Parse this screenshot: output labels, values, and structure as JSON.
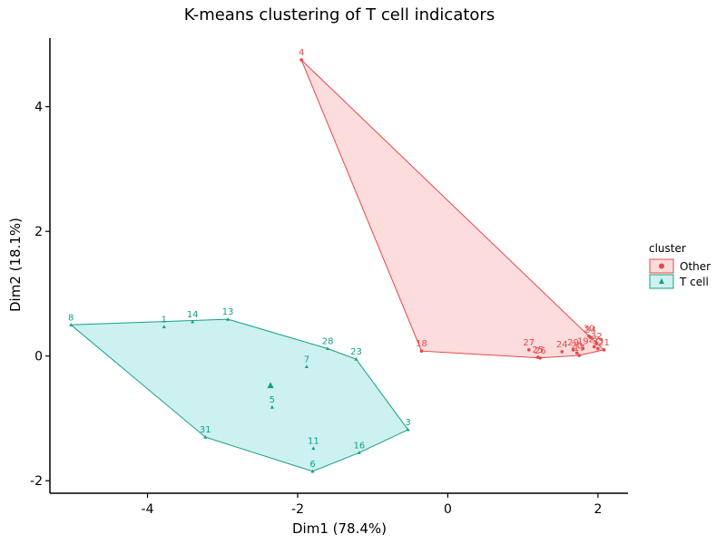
{
  "chart_data": {
    "type": "scatter",
    "title": "K-means clustering of T cell indicators",
    "xlabel": "Dim1 (78.4%)",
    "ylabel": "Dim2 (18.1%)",
    "xlim": [
      -5.3,
      2.4
    ],
    "ylim": [
      -2.2,
      5.1
    ],
    "x_ticks": [
      -4,
      -2,
      0,
      2
    ],
    "y_ticks": [
      -2,
      0,
      2,
      4
    ],
    "grid": false,
    "legend_placement": "right",
    "legend": {
      "title": "cluster",
      "entries": [
        {
          "name": "Other",
          "shape": "circle",
          "color": "#e8474a",
          "fill": "#fcdcdc"
        },
        {
          "name": "T cell",
          "shape": "triangle",
          "color": "#14a085",
          "fill": "#cdf0f0"
        }
      ]
    },
    "series": [
      {
        "name": "Other",
        "color": "#e8474a",
        "fill": "#fcdcdc",
        "hull": [
          "4",
          "18",
          "26",
          "17",
          "21",
          "30"
        ],
        "points": [
          {
            "label": "4",
            "x": -1.95,
            "y": 4.75
          },
          {
            "label": "18",
            "x": -0.35,
            "y": 0.08
          },
          {
            "label": "27",
            "x": 1.08,
            "y": 0.1
          },
          {
            "label": "25",
            "x": 1.2,
            "y": -0.02
          },
          {
            "label": "26",
            "x": 1.23,
            "y": -0.03
          },
          {
            "label": "24",
            "x": 1.52,
            "y": 0.07
          },
          {
            "label": "29",
            "x": 1.67,
            "y": 0.1
          },
          {
            "label": "17",
            "x": 1.75,
            "y": 0.01
          },
          {
            "label": "34",
            "x": 1.9,
            "y": 0.3
          },
          {
            "label": "32",
            "x": 1.98,
            "y": 0.2
          },
          {
            "label": "21",
            "x": 2.08,
            "y": 0.1
          },
          {
            "label": "30",
            "x": 1.88,
            "y": 0.32
          },
          {
            "label": "19",
            "x": 1.8,
            "y": 0.12
          },
          {
            "label": "22",
            "x": 1.95,
            "y": 0.15
          },
          {
            "label": "20",
            "x": 1.72,
            "y": 0.05
          },
          {
            "label": "33",
            "x": 2.0,
            "y": 0.12
          }
        ]
      },
      {
        "name": "T cell",
        "color": "#14a085",
        "fill": "#cdf0f0",
        "hull": [
          "8",
          "13",
          "28",
          "23",
          "3",
          "16",
          "6",
          "31"
        ],
        "points": [
          {
            "label": "8",
            "x": -5.02,
            "y": 0.5
          },
          {
            "label": "1",
            "x": -3.78,
            "y": 0.47
          },
          {
            "label": "14",
            "x": -3.4,
            "y": 0.55
          },
          {
            "label": "13",
            "x": -2.93,
            "y": 0.59
          },
          {
            "label": "28",
            "x": -1.6,
            "y": 0.12
          },
          {
            "label": "23",
            "x": -1.22,
            "y": -0.05
          },
          {
            "label": "7",
            "x": -1.88,
            "y": -0.17
          },
          {
            "label": "5",
            "x": -2.34,
            "y": -0.82
          },
          {
            "label": "3",
            "x": -0.53,
            "y": -1.18
          },
          {
            "label": "16",
            "x": -1.18,
            "y": -1.55
          },
          {
            "label": "11",
            "x": -1.79,
            "y": -1.48
          },
          {
            "label": "6",
            "x": -1.8,
            "y": -1.85
          },
          {
            "label": "31",
            "x": -3.23,
            "y": -1.3
          }
        ]
      }
    ]
  }
}
